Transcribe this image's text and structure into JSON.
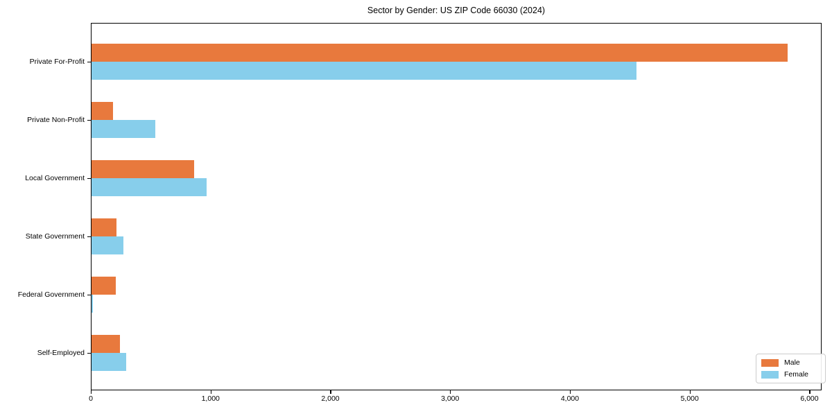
{
  "title": "Sector by Gender: US ZIP Code 66030 (2024)",
  "chart_data": {
    "type": "bar",
    "orientation": "horizontal",
    "title": "Sector by Gender: US ZIP Code 66030 (2024)",
    "xlabel": "",
    "ylabel": "",
    "categories": [
      "Private For-Profit",
      "Private Non-Profit",
      "Local Government",
      "State Government",
      "Federal Government",
      "Self-Employed"
    ],
    "series": [
      {
        "name": "Male",
        "color": "#E8793D",
        "values": [
          5810,
          180,
          855,
          210,
          200,
          240
        ]
      },
      {
        "name": "Female",
        "color": "#87CEEB",
        "values": [
          4550,
          530,
          960,
          265,
          12,
          290
        ]
      }
    ],
    "xlim": [
      0,
      6090
    ],
    "xticks": {
      "values": [
        0,
        1000,
        2000,
        3000,
        4000,
        5000,
        6000
      ],
      "labels": [
        "0",
        "1,000",
        "2,000",
        "3,000",
        "4,000",
        "5,000",
        "6,000"
      ]
    },
    "grid": false,
    "legend_position": "lower right",
    "background": "#ffffff",
    "axis_color": "#000000"
  }
}
